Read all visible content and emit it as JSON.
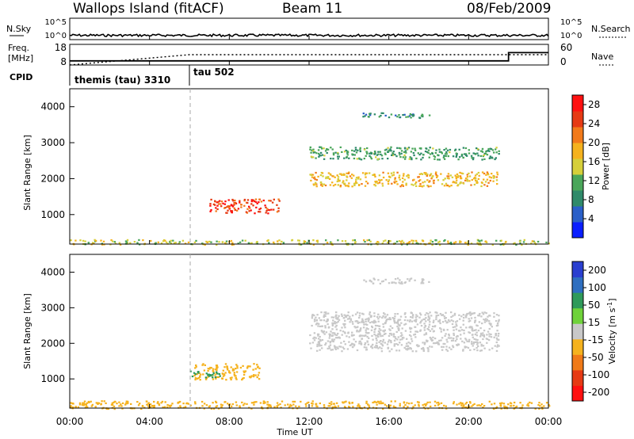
{
  "header": {
    "station": "Wallops Island (fitACF)",
    "beam": "Beam 11",
    "date": "08/Feb/2009"
  },
  "sky_panel": {
    "left_label": "N.Sky",
    "left_ticks": [
      "10^5",
      "10^0"
    ],
    "right_ticks": [
      "10^5",
      "10^0"
    ],
    "right_label": "N.Search"
  },
  "freq_panel": {
    "left_label_1": "Freq.",
    "left_label_2": "[MHz]",
    "left_ticks": [
      "18",
      "8"
    ],
    "right_ticks": [
      "60",
      "0"
    ],
    "right_label": "Nave"
  },
  "cpid_panel": {
    "label": "CPID",
    "segments": [
      "themis (tau) 3310",
      "tau 502"
    ]
  },
  "colors": {
    "power_scale": [
      "#0a1eff",
      "#2a5fc8",
      "#2f8a6a",
      "#4aa65a",
      "#d6cf3a",
      "#f5b21e",
      "#f27a1a",
      "#e63a14",
      "#ff1010"
    ],
    "velocity_scale": [
      "#2a3fd0",
      "#2f6fc0",
      "#2f9a5a",
      "#6fd23a",
      "#c8c8c8",
      "#f5b21e",
      "#f07a18",
      "#e63a14",
      "#ff1010"
    ]
  },
  "chart_data": [
    {
      "type": "line",
      "title": "N.Sky / N.Search",
      "x": [
        "00:00",
        "04:00",
        "08:00",
        "12:00",
        "16:00",
        "20:00",
        "00:00"
      ],
      "ylim": [
        "10^0",
        "10^5"
      ],
      "series": [
        {
          "name": "N.Sky",
          "style": "solid",
          "level": 0.2
        },
        {
          "name": "N.Search",
          "style": "dotted"
        }
      ]
    },
    {
      "type": "line",
      "x_hours": [
        0,
        6,
        12,
        22,
        24
      ],
      "series": [
        {
          "name": "Freq. [MHz]",
          "values": [
            10,
            10,
            10,
            14,
            10
          ],
          "ylim": [
            8,
            18
          ],
          "step_hours": [
            0,
            12,
            22
          ]
        },
        {
          "name": "Nave",
          "values": [
            0,
            30,
            30,
            30,
            30
          ],
          "ylim": [
            0,
            60
          ]
        }
      ]
    },
    {
      "type": "heatmap",
      "ylabel": "Slant Range [km]",
      "yticks": [
        1000,
        2000,
        3000,
        4000
      ],
      "ylim": [
        180,
        4500
      ],
      "xlim_hours": [
        0,
        24
      ],
      "colorbar": {
        "label": "Power [dB]",
        "ticks": [
          4,
          8,
          12,
          16,
          20,
          24,
          28
        ],
        "range": [
          0,
          30
        ]
      },
      "regions": [
        {
          "t": [
            7.0,
            10.5
          ],
          "r": [
            1050,
            1450
          ],
          "level": 0.85
        },
        {
          "t": [
            12.0,
            21.5
          ],
          "r": [
            1800,
            2200
          ],
          "level": 0.6
        },
        {
          "t": [
            12.0,
            21.5
          ],
          "r": [
            2550,
            2900
          ],
          "level": 0.35
        },
        {
          "t": [
            14.5,
            18.0
          ],
          "r": [
            3700,
            3850
          ],
          "level": 0.3
        },
        {
          "t": [
            0.0,
            24.0
          ],
          "r": [
            180,
            320
          ],
          "level": 0.5
        }
      ]
    },
    {
      "type": "heatmap",
      "ylabel": "Slant Range [km]",
      "xlabel": "Time UT",
      "xticks": [
        "00:00",
        "04:00",
        "08:00",
        "12:00",
        "16:00",
        "20:00",
        "00:00"
      ],
      "yticks": [
        1000,
        2000,
        3000,
        4000
      ],
      "ylim": [
        180,
        4500
      ],
      "xlim_hours": [
        0,
        24
      ],
      "colorbar": {
        "label": "Velocity [m s^-1]",
        "ticks": [
          200,
          100,
          50,
          15,
          -15,
          -50,
          -100,
          -200
        ]
      },
      "regions": [
        {
          "t": [
            6.2,
            9.5
          ],
          "r": [
            1000,
            1450
          ],
          "velocity": -50
        },
        {
          "t": [
            6.0,
            7.5
          ],
          "r": [
            1050,
            1250
          ],
          "velocity": 50
        },
        {
          "t": [
            12.0,
            21.5
          ],
          "r": [
            1800,
            2900
          ],
          "velocity": 0
        },
        {
          "t": [
            14.5,
            18.0
          ],
          "r": [
            3700,
            3850
          ],
          "velocity": 0
        },
        {
          "t": [
            0.0,
            24.0
          ],
          "r": [
            180,
            400
          ],
          "velocity": -50
        }
      ]
    }
  ]
}
